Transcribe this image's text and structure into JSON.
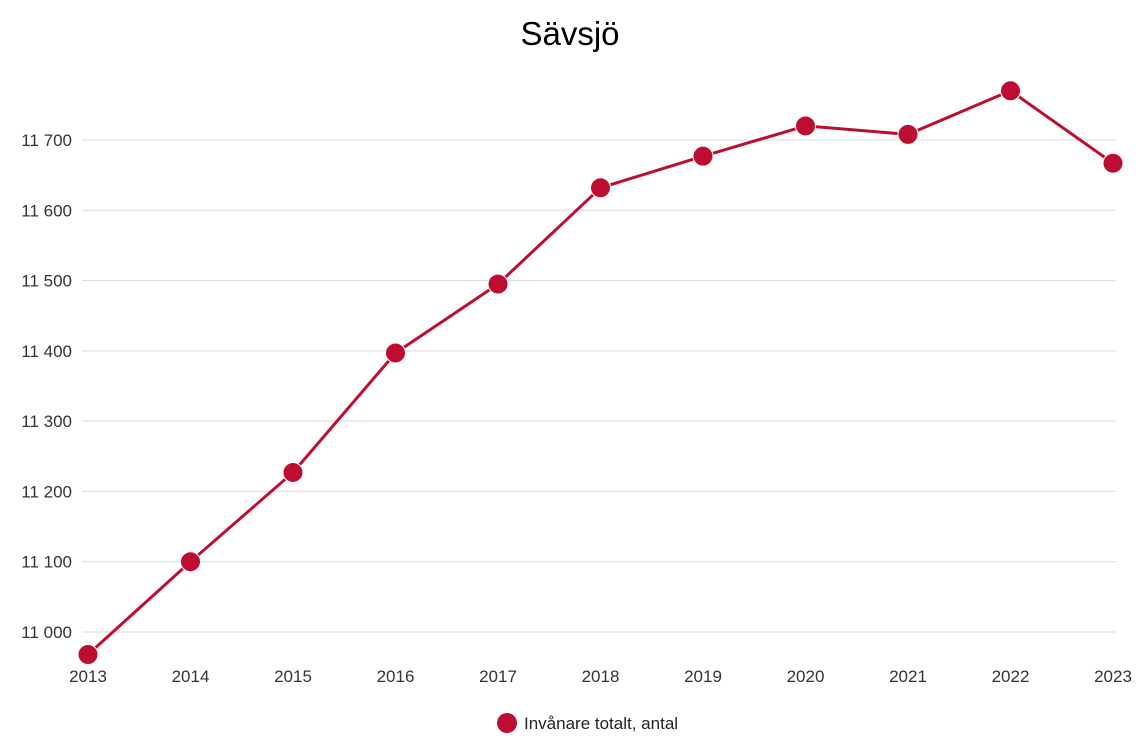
{
  "chart_data": {
    "type": "line",
    "title": "Sävsjö",
    "xlabel": "",
    "ylabel": "",
    "x": [
      "2013",
      "2014",
      "2015",
      "2016",
      "2017",
      "2018",
      "2019",
      "2020",
      "2021",
      "2022",
      "2023"
    ],
    "y_ticks": [
      "11 000",
      "11 100",
      "11 200",
      "11 300",
      "11 400",
      "11 500",
      "11 600",
      "11 700"
    ],
    "ylim": [
      10968,
      11800
    ],
    "grid": true,
    "legend_position": "bottom",
    "series": [
      {
        "name": "Invånare totalt, antal",
        "color": "#bd0e31",
        "values": [
          10968,
          11100,
          11227,
          11397,
          11495,
          11632,
          11677,
          11720,
          11708,
          11770,
          11667
        ]
      }
    ]
  }
}
